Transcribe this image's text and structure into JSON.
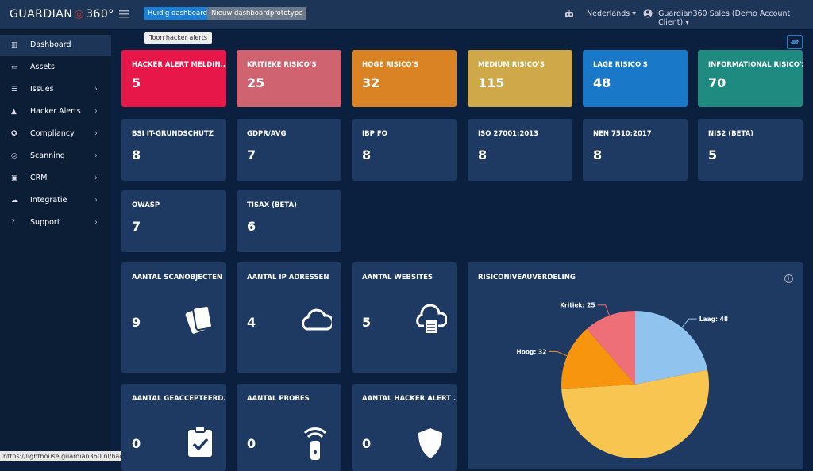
{
  "header": {
    "brand": "GUARDIAN",
    "brand_suffix": "360°",
    "tabs": [
      "Huidig dashboard",
      "Nieuw dashboardprototype"
    ],
    "tooltip": "Toon hacker alerts",
    "language": "Nederlands",
    "account": "Guardian360 Sales (Demo Account Client)"
  },
  "sidebar": {
    "items": [
      {
        "label": "Dashboard",
        "active": true,
        "submenu": false
      },
      {
        "label": "Assets",
        "active": false,
        "submenu": false
      },
      {
        "label": "Issues",
        "active": false,
        "submenu": true
      },
      {
        "label": "Hacker Alerts",
        "active": false,
        "submenu": true
      },
      {
        "label": "Compliancy",
        "active": false,
        "submenu": true
      },
      {
        "label": "Scanning",
        "active": false,
        "submenu": true
      },
      {
        "label": "CRM",
        "active": false,
        "submenu": true
      },
      {
        "label": "Integratie",
        "active": false,
        "submenu": true
      },
      {
        "label": "Support",
        "active": false,
        "submenu": true
      }
    ]
  },
  "risk_cards": [
    {
      "label": "HACKER ALERT MELDIN...",
      "value": "5",
      "color": "#e8174a"
    },
    {
      "label": "KRITIEKE RISICO'S",
      "value": "25",
      "color": "#cf6370"
    },
    {
      "label": "HOGE RISICO'S",
      "value": "32",
      "color": "#d98324"
    },
    {
      "label": "MEDIUM RISICO'S",
      "value": "115",
      "color": "#cfa84a"
    },
    {
      "label": "LAGE RISICO'S",
      "value": "48",
      "color": "#1a78c9"
    },
    {
      "label": "INFORMATIONAL RISICO'S",
      "value": "70",
      "color": "#1f8a80"
    }
  ],
  "compliance_cards": [
    {
      "label": "BSI IT-GRUNDSCHUTZ",
      "value": "8"
    },
    {
      "label": "GDPR/AVG",
      "value": "7"
    },
    {
      "label": "IBP FO",
      "value": "8"
    },
    {
      "label": "ISO 27001:2013",
      "value": "8"
    },
    {
      "label": "NEN 7510:2017",
      "value": "8"
    },
    {
      "label": "NIS2 (BETA)",
      "value": "5"
    },
    {
      "label": "OWASP",
      "value": "7"
    },
    {
      "label": "TISAX (BETA)",
      "value": "6"
    }
  ],
  "stat_cards": [
    {
      "label": "AANTAL SCANOBJECTEN",
      "value": "9"
    },
    {
      "label": "AANTAL IP ADRESSEN",
      "value": "4"
    },
    {
      "label": "AANTAL WEBSITES",
      "value": "5"
    },
    {
      "label": "AANTAL GEACCEPTEERD...",
      "value": "0"
    },
    {
      "label": "AANTAL PROBES",
      "value": "0"
    },
    {
      "label": "AANTAL HACKER ALERT ...",
      "value": "0"
    }
  ],
  "chart_data": {
    "type": "pie",
    "title": "RISICONIVEAUVERDELING",
    "values": [
      48,
      115,
      32,
      25
    ],
    "value_labels": [
      "Laag: 48",
      null,
      "Hoog: 32",
      "Kritiek: 25"
    ],
    "colors": [
      "#90c4ef",
      "#f8c551",
      "#f7950f",
      "#ee6f77"
    ]
  },
  "status_url": "https://lighthouse.guardian360.nl/hacker-alerts"
}
